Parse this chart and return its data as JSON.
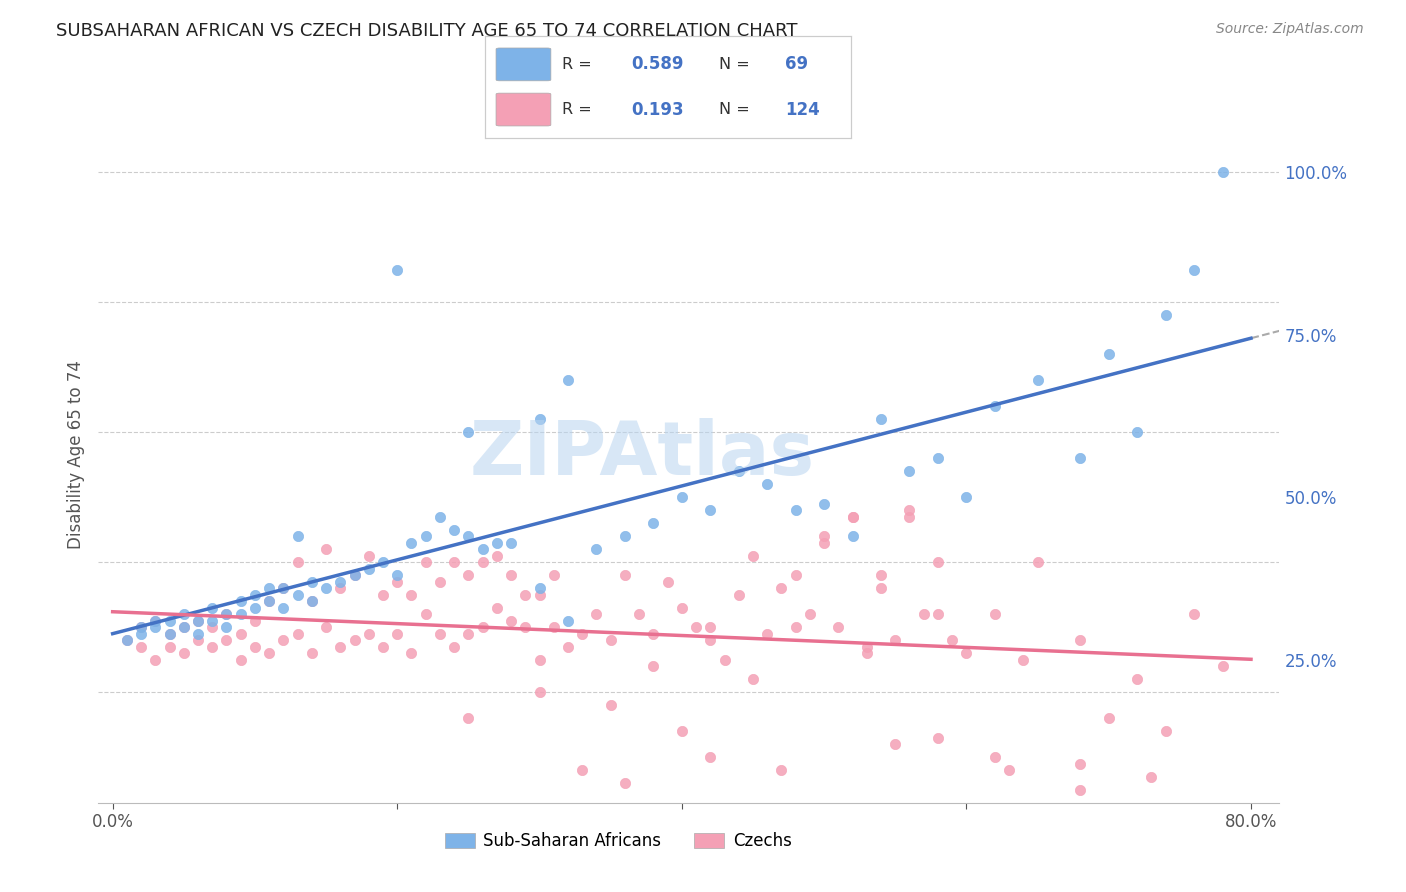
{
  "title": "SUBSAHARAN AFRICAN VS CZECH DISABILITY AGE 65 TO 74 CORRELATION CHART",
  "source": "Source: ZipAtlas.com",
  "ylabel": "Disability Age 65 to 74",
  "legend_label_blue": "Sub-Saharan Africans",
  "legend_label_pink": "Czechs",
  "legend_R_blue": "0.589",
  "legend_N_blue": "69",
  "legend_R_pink": "0.193",
  "legend_N_pink": "124",
  "blue_color": "#7EB3E8",
  "pink_color": "#F4A0B5",
  "blue_line_color": "#4472C4",
  "pink_line_color": "#E87090",
  "blue_scatter_x": [
    0.01,
    0.02,
    0.02,
    0.03,
    0.03,
    0.04,
    0.04,
    0.05,
    0.05,
    0.06,
    0.06,
    0.07,
    0.07,
    0.08,
    0.08,
    0.09,
    0.09,
    0.1,
    0.1,
    0.11,
    0.11,
    0.12,
    0.12,
    0.13,
    0.13,
    0.14,
    0.14,
    0.15,
    0.16,
    0.17,
    0.18,
    0.19,
    0.2,
    0.21,
    0.22,
    0.23,
    0.24,
    0.25,
    0.26,
    0.27,
    0.28,
    0.3,
    0.32,
    0.34,
    0.36,
    0.38,
    0.4,
    0.42,
    0.44,
    0.46,
    0.48,
    0.5,
    0.52,
    0.54,
    0.56,
    0.58,
    0.6,
    0.62,
    0.65,
    0.68,
    0.7,
    0.72,
    0.74,
    0.76,
    0.78,
    0.32,
    0.25,
    0.3,
    0.2
  ],
  "blue_scatter_y": [
    0.28,
    0.3,
    0.29,
    0.31,
    0.3,
    0.29,
    0.31,
    0.3,
    0.32,
    0.29,
    0.31,
    0.33,
    0.31,
    0.3,
    0.32,
    0.32,
    0.34,
    0.33,
    0.35,
    0.34,
    0.36,
    0.33,
    0.36,
    0.35,
    0.44,
    0.34,
    0.37,
    0.36,
    0.37,
    0.38,
    0.39,
    0.4,
    0.38,
    0.43,
    0.44,
    0.47,
    0.45,
    0.44,
    0.42,
    0.43,
    0.43,
    0.36,
    0.31,
    0.42,
    0.44,
    0.46,
    0.5,
    0.48,
    0.54,
    0.52,
    0.48,
    0.49,
    0.44,
    0.62,
    0.54,
    0.56,
    0.5,
    0.64,
    0.68,
    0.56,
    0.72,
    0.6,
    0.78,
    0.85,
    1.0,
    0.68,
    0.6,
    0.62,
    0.85
  ],
  "pink_scatter_x": [
    0.01,
    0.02,
    0.02,
    0.03,
    0.03,
    0.04,
    0.04,
    0.05,
    0.05,
    0.06,
    0.06,
    0.07,
    0.07,
    0.08,
    0.08,
    0.09,
    0.09,
    0.1,
    0.1,
    0.11,
    0.11,
    0.12,
    0.12,
    0.13,
    0.13,
    0.14,
    0.14,
    0.15,
    0.15,
    0.16,
    0.16,
    0.17,
    0.17,
    0.18,
    0.18,
    0.19,
    0.19,
    0.2,
    0.2,
    0.21,
    0.21,
    0.22,
    0.22,
    0.23,
    0.23,
    0.24,
    0.24,
    0.25,
    0.25,
    0.26,
    0.26,
    0.27,
    0.27,
    0.28,
    0.28,
    0.29,
    0.29,
    0.3,
    0.3,
    0.31,
    0.31,
    0.32,
    0.33,
    0.34,
    0.35,
    0.36,
    0.37,
    0.38,
    0.39,
    0.4,
    0.41,
    0.42,
    0.43,
    0.44,
    0.45,
    0.46,
    0.47,
    0.48,
    0.49,
    0.5,
    0.51,
    0.52,
    0.53,
    0.54,
    0.55,
    0.56,
    0.57,
    0.58,
    0.59,
    0.6,
    0.62,
    0.64,
    0.65,
    0.68,
    0.7,
    0.72,
    0.74,
    0.76,
    0.78,
    0.5,
    0.52,
    0.54,
    0.56,
    0.25,
    0.3,
    0.35,
    0.4,
    0.45,
    0.38,
    0.42,
    0.48,
    0.53,
    0.58,
    0.33,
    0.36,
    0.42,
    0.47,
    0.55,
    0.62,
    0.68,
    0.73,
    0.58,
    0.63,
    0.68
  ],
  "pink_scatter_y": [
    0.28,
    0.27,
    0.3,
    0.25,
    0.31,
    0.27,
    0.29,
    0.26,
    0.3,
    0.28,
    0.31,
    0.27,
    0.3,
    0.28,
    0.32,
    0.25,
    0.29,
    0.27,
    0.31,
    0.26,
    0.34,
    0.28,
    0.36,
    0.29,
    0.4,
    0.26,
    0.34,
    0.3,
    0.42,
    0.27,
    0.36,
    0.28,
    0.38,
    0.29,
    0.41,
    0.27,
    0.35,
    0.29,
    0.37,
    0.26,
    0.35,
    0.32,
    0.4,
    0.29,
    0.37,
    0.27,
    0.4,
    0.29,
    0.38,
    0.3,
    0.4,
    0.33,
    0.41,
    0.31,
    0.38,
    0.3,
    0.35,
    0.25,
    0.35,
    0.3,
    0.38,
    0.27,
    0.29,
    0.32,
    0.28,
    0.38,
    0.32,
    0.29,
    0.37,
    0.33,
    0.3,
    0.3,
    0.25,
    0.35,
    0.41,
    0.29,
    0.36,
    0.38,
    0.32,
    0.43,
    0.3,
    0.47,
    0.27,
    0.36,
    0.28,
    0.47,
    0.32,
    0.4,
    0.28,
    0.26,
    0.32,
    0.25,
    0.4,
    0.28,
    0.16,
    0.22,
    0.14,
    0.32,
    0.24,
    0.44,
    0.47,
    0.38,
    0.48,
    0.16,
    0.2,
    0.18,
    0.14,
    0.22,
    0.24,
    0.28,
    0.3,
    0.26,
    0.32,
    0.08,
    0.06,
    0.1,
    0.08,
    0.12,
    0.1,
    0.05,
    0.07,
    0.13,
    0.08,
    0.09
  ]
}
